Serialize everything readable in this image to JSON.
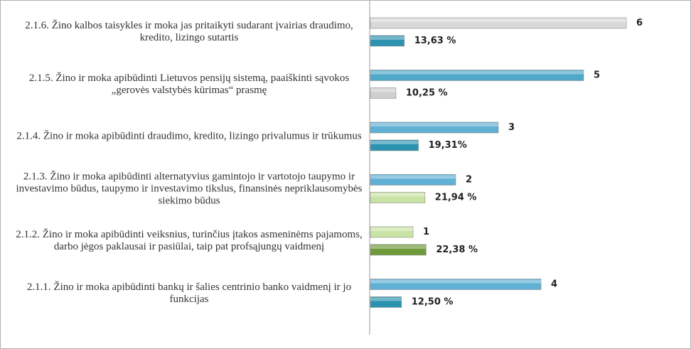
{
  "chart_data": {
    "type": "bar",
    "orientation": "horizontal",
    "categories": [
      "2.1.6. Žino kalbos taisykles ir moka jas pritaikyti sudarant įvairias draudimo, kredito, lizingo sutartis",
      "2.1.5. Žino ir moka apibūdinti Lietuvos pensijų sistemą, paaiškinti sąvokos „gerovės valstybės kūrimas“ prasmę",
      "2.1.4. Žino ir moka apibūdinti draudimo, kredito, lizingo privalumus ir trūkumus",
      "2.1.3. Žino ir moka apibūdinti alternatyvius gamintojo ir vartotojo taupymo ir investavimo būdus, taupymo ir investavimo tikslus, finansinės nepriklausomybės siekimo būdus",
      "2.1.2. Žino ir moka apibūdinti veiksnius, turinčius įtakos asmeninėms pajamoms, darbo jėgos paklausai ir pasiūlai, taip pat profsąjungų vaidmenį",
      "2.1.1. Žino ir moka apibūdinti bankų ir šalies centrinio banko vaidmenį ir jo funkcijas"
    ],
    "series": [
      {
        "values": [
          6,
          5,
          3,
          2,
          1,
          4
        ],
        "colors": [
          "#d9d9d9",
          "#4fa8c8",
          "#5fb0d4",
          "#5fb0d4",
          "#c9e3a4",
          "#5fb0d4"
        ]
      },
      {
        "values": [
          13.63,
          10.25,
          19.31,
          21.94,
          22.38,
          12.5
        ],
        "value_labels": [
          "13,63 %",
          "10,25 %",
          "19,31%",
          "21,94 %",
          "22,38 %",
          "12,50 %"
        ],
        "colors": [
          "#2b93b0",
          "#cfcfcf",
          "#2b93b0",
          "#c9e3a4",
          "#6f9a3a",
          "#2b93b0"
        ]
      }
    ]
  }
}
